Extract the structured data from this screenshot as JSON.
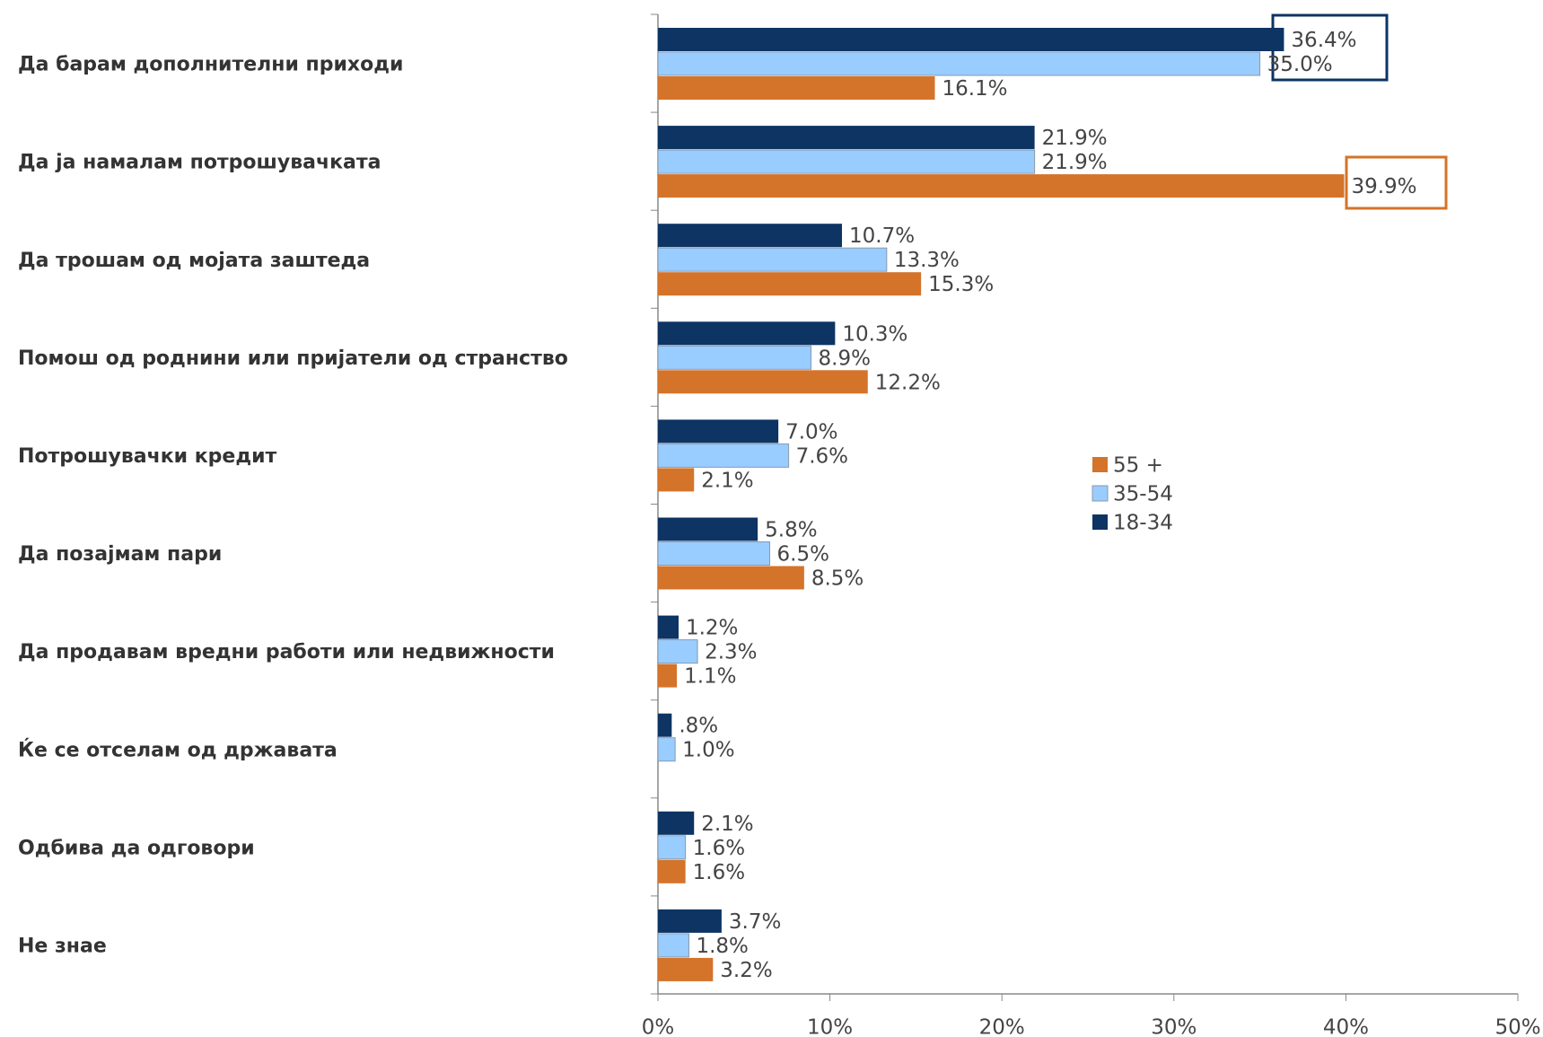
{
  "chart_data": {
    "type": "bar",
    "orientation": "horizontal",
    "categories": [
      "Да барам дополнителни приходи",
      "Да ја намалам потрошувачката",
      "Да трошам од мојата заштеда",
      "Помош од роднини или пријатели од странство",
      "Потрошувачки кредит",
      "Да позајмам пари",
      "Да продавам вредни работи или недвижности",
      "Ќе се отселам од државата",
      "Одбива да одговори",
      "Не знае"
    ],
    "series": [
      {
        "name": "18-34",
        "color": "#0d3463",
        "values": [
          36.4,
          21.9,
          10.7,
          10.3,
          7.0,
          5.8,
          1.2,
          0.8,
          2.1,
          3.7
        ],
        "value_labels": [
          "36.4%",
          "21.9%",
          "10.7%",
          "10.3%",
          "7.0%",
          "5.8%",
          "1.2%",
          ".8%",
          "2.1%",
          "3.7%"
        ]
      },
      {
        "name": "35-54",
        "color": "#99ccff",
        "values": [
          35.0,
          21.9,
          13.3,
          8.9,
          7.6,
          6.5,
          2.3,
          1.0,
          1.6,
          1.8
        ],
        "value_labels": [
          "35.0%",
          "21.9%",
          "13.3%",
          "8.9%",
          "7.6%",
          "6.5%",
          "2.3%",
          "1.0%",
          "1.6%",
          "1.8%"
        ]
      },
      {
        "name": "55 +",
        "color": "#d4732a",
        "values": [
          16.1,
          39.9,
          15.3,
          12.2,
          2.1,
          8.5,
          1.1,
          null,
          1.6,
          3.2
        ],
        "value_labels": [
          "16.1%",
          "39.9%",
          "15.3%",
          "12.2%",
          "2.1%",
          "8.5%",
          "1.1%",
          null,
          "1.6%",
          "3.2%"
        ]
      }
    ],
    "xlim": [
      0,
      50
    ],
    "xticks": [
      {
        "value": 0,
        "label": "0%"
      },
      {
        "value": 10,
        "label": "10%"
      },
      {
        "value": 20,
        "label": "20%"
      },
      {
        "value": 30,
        "label": "30%"
      },
      {
        "value": 40,
        "label": "40%"
      },
      {
        "value": 50,
        "label": "50%"
      }
    ]
  }
}
